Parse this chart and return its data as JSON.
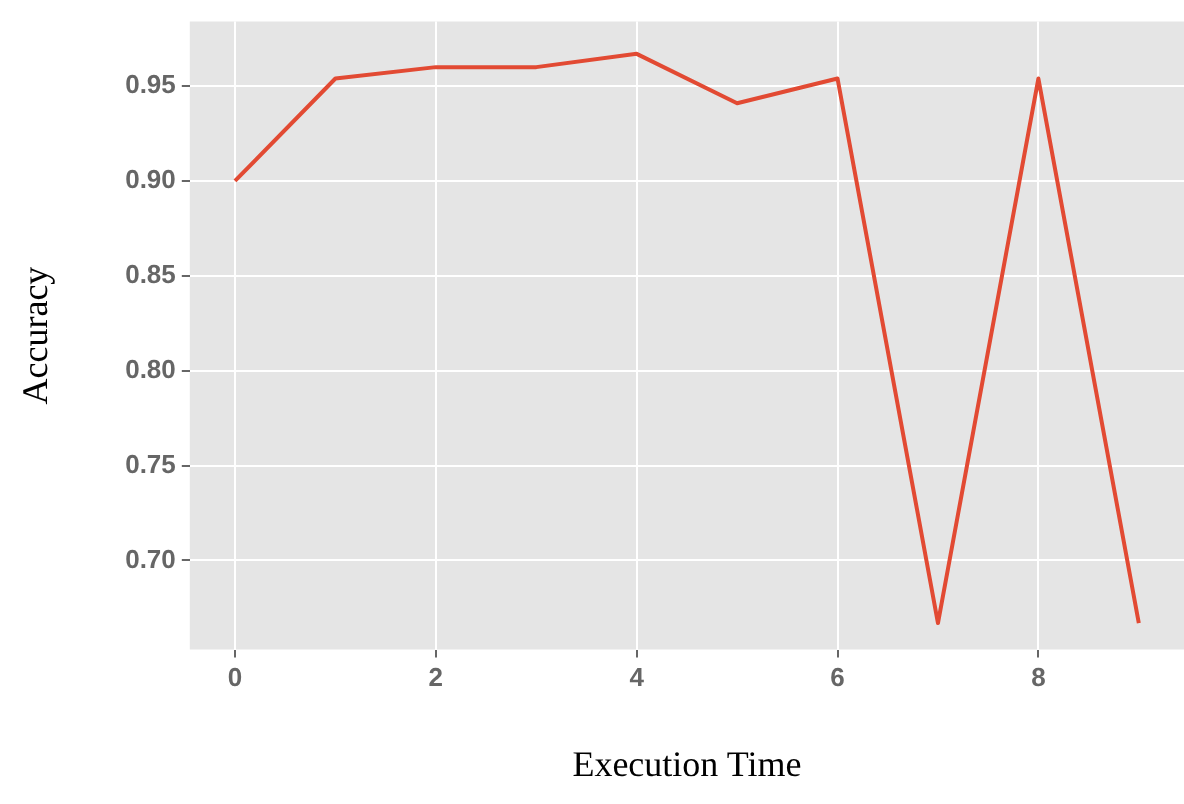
{
  "chart_data": {
    "type": "line",
    "xlabel": "Execution Time",
    "ylabel": "Accuracy",
    "x": [
      0,
      1,
      2,
      3,
      4,
      5,
      6,
      7,
      8,
      9
    ],
    "series": [
      {
        "color": "#e24a33",
        "values": [
          0.9,
          0.954,
          0.96,
          0.96,
          0.967,
          0.941,
          0.954,
          0.667,
          0.954,
          0.667
        ]
      }
    ],
    "xlim": [
      -0.45,
      9.45
    ],
    "ylim": [
      0.653,
      0.984
    ],
    "xticks": [
      0,
      2,
      4,
      6,
      8
    ],
    "yticks": [
      {
        "value": 0.7,
        "label": "0.70"
      },
      0.75,
      {
        "value": 0.8,
        "label": "0.80"
      },
      0.85,
      {
        "value": 0.9,
        "label": "0.90"
      },
      0.95
    ],
    "grid": true,
    "legend": false,
    "marker": "none",
    "line_style": "solid"
  }
}
